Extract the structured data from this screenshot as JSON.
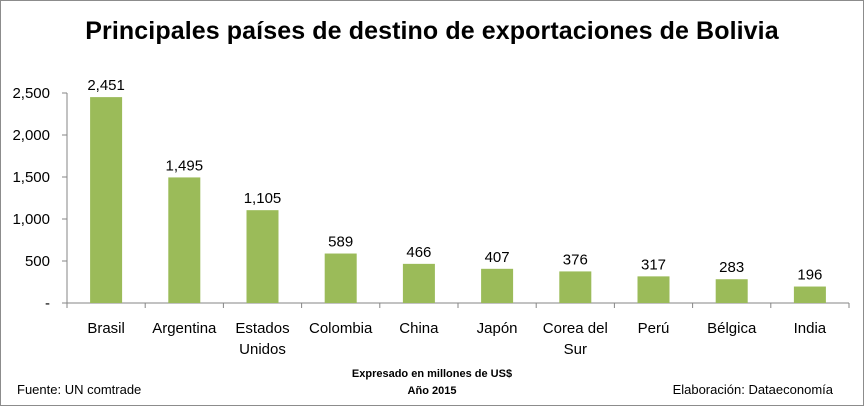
{
  "title": "Principales países de destino de exportaciones de Bolivia",
  "notes": [
    "Expresado en millones de US$",
    "Año 2015"
  ],
  "source": "Fuente: UN comtrade",
  "credit": "Elaboración: Dataeconomía",
  "colors": {
    "bar": "#9bbb59",
    "axis": "#868686"
  },
  "chart_data": {
    "type": "bar",
    "categories": [
      "Brasil",
      "Argentina",
      "Estados Unidos",
      "Colombia",
      "China",
      "Japón",
      "Corea del Sur",
      "Perú",
      "Bélgica",
      "India"
    ],
    "category_lines": [
      [
        "Brasil"
      ],
      [
        "Argentina"
      ],
      [
        "Estados",
        "Unidos"
      ],
      [
        "Colombia"
      ],
      [
        "China"
      ],
      [
        "Japón"
      ],
      [
        "Corea del",
        "Sur"
      ],
      [
        "Perú"
      ],
      [
        "Bélgica"
      ],
      [
        "India"
      ]
    ],
    "values": [
      2451,
      1495,
      1105,
      589,
      466,
      407,
      376,
      317,
      283,
      196
    ],
    "data_labels": [
      "2,451",
      "1,495",
      "1,105",
      "589",
      "466",
      "407",
      "376",
      "317",
      "283",
      "196"
    ],
    "ylim": [
      0,
      2500
    ],
    "yticks": [
      0,
      500,
      1000,
      1500,
      2000,
      2500
    ],
    "ytick_labels": [
      "-",
      "500",
      "1,000",
      "1,500",
      "2,000",
      "2,500"
    ],
    "grid": false,
    "xlabel": "",
    "ylabel": ""
  }
}
